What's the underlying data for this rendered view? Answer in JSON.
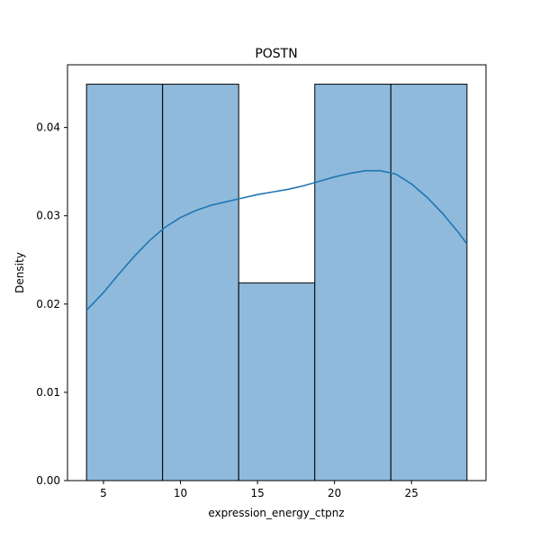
{
  "chart_data": {
    "type": "bar",
    "title": "POSTN",
    "xlabel": "expression_energy_ctpnz",
    "ylabel": "Density",
    "bins": [
      {
        "x0": 3.9,
        "x1": 8.84,
        "density": 0.0449
      },
      {
        "x0": 8.84,
        "x1": 13.78,
        "density": 0.0449
      },
      {
        "x0": 13.78,
        "x1": 18.72,
        "density": 0.0224
      },
      {
        "x0": 18.72,
        "x1": 23.66,
        "density": 0.0449
      },
      {
        "x0": 23.66,
        "x1": 28.6,
        "density": 0.0449
      }
    ],
    "kde": {
      "x": [
        3.9,
        5.0,
        6.0,
        7.0,
        8.0,
        9.0,
        10.0,
        11.0,
        12.0,
        13.0,
        14.0,
        15.0,
        16.0,
        17.0,
        18.0,
        19.0,
        20.0,
        21.0,
        22.0,
        23.0,
        24.0,
        25.0,
        26.0,
        27.0,
        28.0,
        28.6
      ],
      "y": [
        0.0193,
        0.0213,
        0.0234,
        0.0254,
        0.0272,
        0.0287,
        0.0298,
        0.0306,
        0.0312,
        0.0316,
        0.032,
        0.0324,
        0.0327,
        0.033,
        0.0334,
        0.0339,
        0.0344,
        0.0348,
        0.0351,
        0.0351,
        0.0347,
        0.0336,
        0.0321,
        0.0303,
        0.0282,
        0.0268
      ]
    },
    "xlim": [
      2.665,
      29.835
    ],
    "ylim": [
      0,
      0.0471
    ],
    "xticks": [
      5,
      10,
      15,
      20,
      25
    ],
    "xtick_labels": [
      "5",
      "10",
      "15",
      "20",
      "25"
    ],
    "yticks": [
      0,
      0.01,
      0.02,
      0.03,
      0.04
    ],
    "ytick_labels": [
      "0.00",
      "0.01",
      "0.02",
      "0.03",
      "0.04"
    ],
    "grid": false,
    "colors": {
      "bar_fill": "#8fbadb",
      "bar_edge": "#000000",
      "kde_line": "#1f77b4"
    }
  }
}
